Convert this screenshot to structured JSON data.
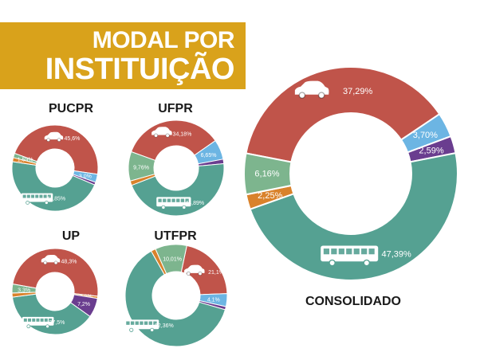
{
  "title": {
    "line1": "MODAL POR",
    "line2": "INSTITUIÇÃO"
  },
  "colors": {
    "car": "#c0544a",
    "bus": "#55a192",
    "walk_bike": "#7db58e",
    "motorcycle": "#d9822b",
    "bicycle": "#6cb5e3",
    "van": "#6a3d8f",
    "label": "#ffffff",
    "outside_label": "#333333"
  },
  "icons": {
    "car": "car-icon",
    "bus": "bus-icon",
    "pedestrian": "pedestrian-icon",
    "motorcycle": "motorcycle-icon",
    "bicycle": "bicycle-icon",
    "van": "van-icon"
  },
  "chart_data": [
    {
      "type": "pie",
      "title": "PUCPR",
      "slices": [
        {
          "mode": "car",
          "value": 45.6,
          "label": "45,6%"
        },
        {
          "mode": "bicycle",
          "value": 3.0,
          "label": "3,0%"
        },
        {
          "mode": "van",
          "value": 1.0,
          "label": ""
        },
        {
          "mode": "bus",
          "value": 44.85,
          "label": "44,85%"
        },
        {
          "mode": "motorcycle",
          "value": 1.5,
          "label": ""
        },
        {
          "mode": "walk_bike",
          "value": 1.59,
          "label": "1,59%"
        }
      ]
    },
    {
      "type": "pie",
      "title": "UFPR",
      "slices": [
        {
          "mode": "car",
          "value": 34.18,
          "label": "34,18%"
        },
        {
          "mode": "bicycle",
          "value": 6.65,
          "label": "6,65%"
        },
        {
          "mode": "van",
          "value": 1.5,
          "label": ""
        },
        {
          "mode": "bus",
          "value": 44.89,
          "label": "44,89%"
        },
        {
          "mode": "motorcycle",
          "value": 1.5,
          "label": ""
        },
        {
          "mode": "walk_bike",
          "value": 9.76,
          "label": "9,76%"
        }
      ]
    },
    {
      "type": "pie",
      "title": "UP",
      "slices": [
        {
          "mode": "car",
          "value": 48.3,
          "label": "48,3%"
        },
        {
          "mode": "motorcycle",
          "value": 0.8,
          "label": "0,8%"
        },
        {
          "mode": "van",
          "value": 7.2,
          "label": "7,2%"
        },
        {
          "mode": "bus",
          "value": 37.5,
          "label": "37,5%"
        },
        {
          "mode": "motorcycle",
          "value": 1.5,
          "label": ""
        },
        {
          "mode": "walk_bike",
          "value": 3.3,
          "label": "3,3%"
        }
      ]
    },
    {
      "type": "pie",
      "title": "UTFPR",
      "slices": [
        {
          "mode": "car",
          "value": 21.1,
          "label": "21,1%"
        },
        {
          "mode": "bicycle",
          "value": 4.1,
          "label": "4,1%"
        },
        {
          "mode": "van",
          "value": 1.0,
          "label": ""
        },
        {
          "mode": "bus",
          "value": 62.36,
          "label": "62,36%"
        },
        {
          "mode": "motorcycle",
          "value": 1.5,
          "label": ""
        },
        {
          "mode": "walk_bike",
          "value": 10.01,
          "label": "10,01%"
        }
      ]
    },
    {
      "type": "pie",
      "title": "CONSOLIDADO",
      "slices": [
        {
          "mode": "car",
          "value": 37.29,
          "label": "37,29%"
        },
        {
          "mode": "bicycle",
          "value": 3.7,
          "label": "3,70%"
        },
        {
          "mode": "van",
          "value": 2.59,
          "label": "2,59%"
        },
        {
          "mode": "bus",
          "value": 47.39,
          "label": "47,39%"
        },
        {
          "mode": "motorcycle",
          "value": 2.25,
          "label": "2,25%"
        },
        {
          "mode": "walk_bike",
          "value": 6.16,
          "label": "6,16%"
        }
      ]
    }
  ]
}
